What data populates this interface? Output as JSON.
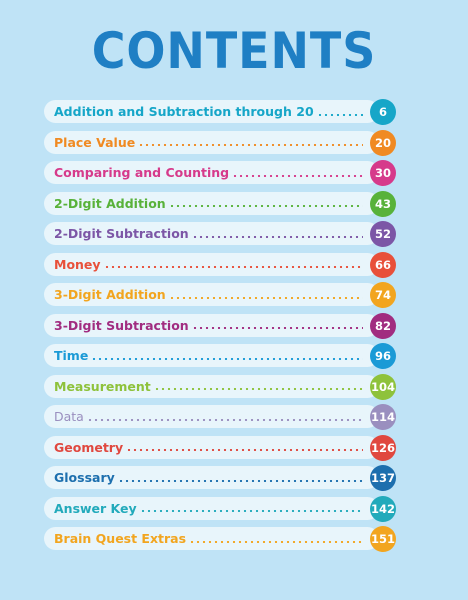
{
  "title": "CONTENTS",
  "entries": [
    {
      "label": "Addition and Subtraction through 20",
      "page": "6",
      "color": "#16a6c8"
    },
    {
      "label": "Place Value",
      "page": "20",
      "color": "#f08a22"
    },
    {
      "label": "Comparing and Counting",
      "page": "30",
      "color": "#d63a8b"
    },
    {
      "label": "2-Digit Addition",
      "page": "43",
      "color": "#58b23a"
    },
    {
      "label": "2-Digit Subtraction",
      "page": "52",
      "color": "#7c56a6"
    },
    {
      "label": "Money",
      "page": "66",
      "color": "#e8503a"
    },
    {
      "label": "3-Digit Addition",
      "page": "74",
      "color": "#f2a51f"
    },
    {
      "label": "3-Digit Subtraction",
      "page": "82",
      "color": "#a12c80"
    },
    {
      "label": "Time",
      "page": "96",
      "color": "#1a9ad6"
    },
    {
      "label": "Measurement",
      "page": "104",
      "color": "#8ec23b"
    },
    {
      "label": "Data",
      "page": "114",
      "color": "#9a8fbf"
    },
    {
      "label": "Geometry",
      "page": "126",
      "color": "#e0483f"
    },
    {
      "label": "Glossary",
      "page": "137",
      "color": "#1d6fae"
    },
    {
      "label": "Answer Key",
      "page": "142",
      "color": "#22aabb"
    },
    {
      "label": "Brain Quest Extras",
      "page": "151",
      "color": "#f2a51f"
    }
  ]
}
